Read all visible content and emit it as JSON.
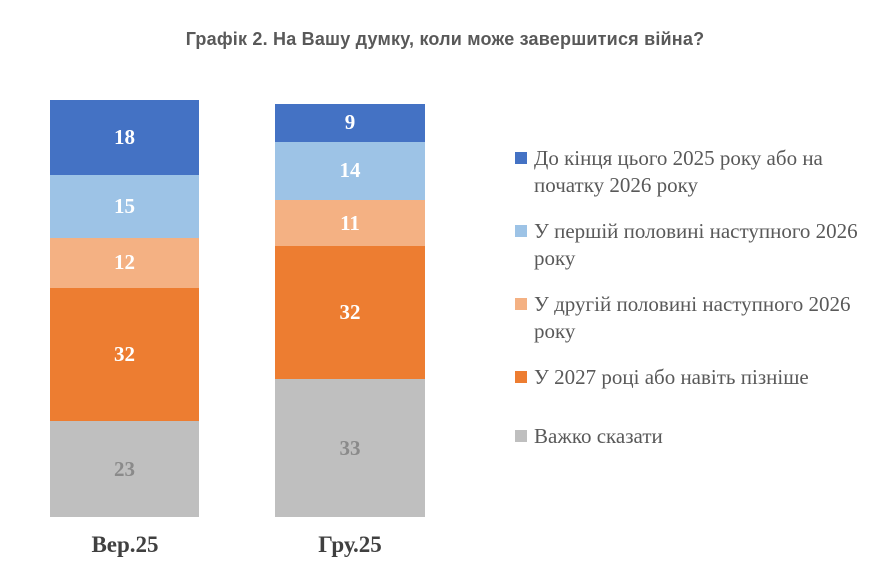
{
  "title": "Графік 2. На Вашу думку, коли може завершитися війна?",
  "chart_data": {
    "type": "bar",
    "stacked": true,
    "title": "Графік 2. На Вашу думку, коли може завершитися війна?",
    "categories": [
      "Вер.25",
      "Гру.25"
    ],
    "series": [
      {
        "name": "До кінця цього 2025 року або на початку 2026 року",
        "color": "#4472C4",
        "label_color": "#FFFFFF",
        "values": [
          18,
          9
        ]
      },
      {
        "name": "У першій половині наступного 2026 року",
        "color": "#9DC3E6",
        "label_color": "#FFFFFF",
        "values": [
          15,
          14
        ]
      },
      {
        "name": "У другій половині наступного 2026 року",
        "color": "#F4B183",
        "label_color": "#FFFFFF",
        "values": [
          12,
          11
        ]
      },
      {
        "name": "У 2027 році або навіть пізніше",
        "color": "#ED7D31",
        "label_color": "#FFFFFF",
        "values": [
          32,
          32
        ]
      },
      {
        "name": "Важко сказати",
        "color": "#BFBFBF",
        "label_color": "#8A8A8A",
        "values": [
          23,
          33
        ]
      }
    ],
    "data_labels": true,
    "legend_position": "right",
    "grid": false,
    "axes_visible": false,
    "ylim": [
      0,
      100
    ],
    "background": "#FFFFFF",
    "title_color": "#595959",
    "axis_label_color": "#404040",
    "legend_text_color": "#595959"
  }
}
